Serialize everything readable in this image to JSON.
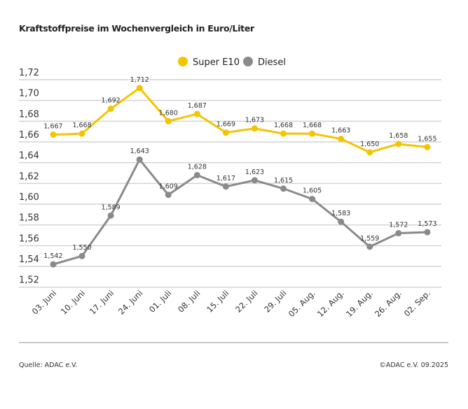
{
  "chart_data": {
    "type": "line",
    "title": "Kraftstoffpreise im Wochenvergleich in Euro/Liter",
    "categories": [
      "03. Juni",
      "10. Juni",
      "17. Juni",
      "24. Juni",
      "01. Juli",
      "08. Juli",
      "15. Juli",
      "22. Juli",
      "29. Juli",
      "05. Aug.",
      "12. Aug.",
      "19. Aug.",
      "26. Aug.",
      "02. Sep."
    ],
    "series": [
      {
        "name": "Super E10",
        "color": "#f5c400",
        "values": [
          1.667,
          1.668,
          1.692,
          1.712,
          1.68,
          1.687,
          1.669,
          1.673,
          1.668,
          1.668,
          1.663,
          1.65,
          1.658,
          1.655
        ]
      },
      {
        "name": "Diesel",
        "color": "#8a8a8a",
        "values": [
          1.542,
          1.55,
          1.589,
          1.643,
          1.609,
          1.628,
          1.617,
          1.623,
          1.615,
          1.605,
          1.583,
          1.559,
          1.572,
          1.573
        ]
      }
    ],
    "ylim": [
      1.52,
      1.72
    ],
    "yticks": [
      "1,52",
      "1,54",
      "1,56",
      "1,58",
      "1,60",
      "1,62",
      "1,64",
      "1,66",
      "1,68",
      "1,70",
      "1,72"
    ],
    "grid": true,
    "legend": "top-center",
    "data_labels": true
  },
  "footer": {
    "source": "Quelle: ADAC e.V.",
    "copyright": "©ADAC e.V. 09.2025"
  }
}
